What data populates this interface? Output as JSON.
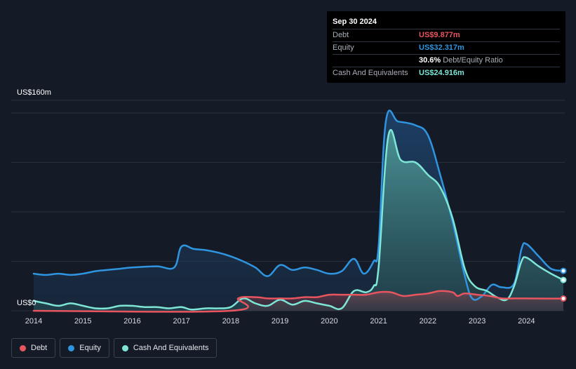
{
  "tooltip": {
    "date": "Sep 30 2024",
    "rows": [
      {
        "label": "Debt",
        "value": "US$9.877m",
        "color": "#e8555f"
      },
      {
        "label": "Equity",
        "value": "US$32.317m",
        "color": "#2f95e0"
      },
      {
        "label": "",
        "value": "30.6%",
        "sub": "Debt/Equity Ratio",
        "color": "#ffffff"
      },
      {
        "label": "Cash And Equivalents",
        "value": "US$24.916m",
        "color": "#7ee6d6"
      }
    ]
  },
  "legend": [
    {
      "label": "Debt",
      "color": "#e8555f"
    },
    {
      "label": "Equity",
      "color": "#2f95e0"
    },
    {
      "label": "Cash And Equivalents",
      "color": "#7ee6d6"
    }
  ],
  "chart_data": {
    "type": "area",
    "ylabel_top": "US$160m",
    "ylabel_bottom": "US$0",
    "ylim": [
      0,
      160
    ],
    "xlim": [
      2014,
      2024.75
    ],
    "xticks": [
      "2014",
      "2015",
      "2016",
      "2017",
      "2018",
      "2019",
      "2020",
      "2021",
      "2022",
      "2023",
      "2024"
    ],
    "grid": true,
    "legend_position": "bottom-left",
    "series": [
      {
        "name": "Equity",
        "color": "#2f95e0",
        "points": [
          [
            2014,
            30
          ],
          [
            2014.25,
            29
          ],
          [
            2014.5,
            30
          ],
          [
            2014.75,
            29
          ],
          [
            2015,
            30
          ],
          [
            2015.25,
            32
          ],
          [
            2015.5,
            33
          ],
          [
            2015.75,
            34
          ],
          [
            2016,
            35
          ],
          [
            2016.5,
            36
          ],
          [
            2016.85,
            35
          ],
          [
            2017,
            52
          ],
          [
            2017.25,
            50
          ],
          [
            2017.5,
            49
          ],
          [
            2017.75,
            47
          ],
          [
            2018,
            44
          ],
          [
            2018.25,
            40
          ],
          [
            2018.5,
            35
          ],
          [
            2018.75,
            28
          ],
          [
            2019,
            37
          ],
          [
            2019.25,
            33
          ],
          [
            2019.5,
            35
          ],
          [
            2019.75,
            33
          ],
          [
            2020,
            30
          ],
          [
            2020.25,
            32
          ],
          [
            2020.5,
            42
          ],
          [
            2020.7,
            30
          ],
          [
            2020.9,
            40
          ],
          [
            2021,
            52
          ],
          [
            2021.15,
            154
          ],
          [
            2021.4,
            153
          ],
          [
            2021.75,
            150
          ],
          [
            2022,
            142
          ],
          [
            2022.25,
            110
          ],
          [
            2022.5,
            72
          ],
          [
            2022.75,
            28
          ],
          [
            2022.9,
            10
          ],
          [
            2023.1,
            12
          ],
          [
            2023.3,
            21
          ],
          [
            2023.5,
            19
          ],
          [
            2023.75,
            22
          ],
          [
            2023.9,
            50
          ],
          [
            2024,
            54
          ],
          [
            2024.25,
            44
          ],
          [
            2024.5,
            34
          ],
          [
            2024.75,
            32.3
          ]
        ]
      },
      {
        "name": "Cash And Equivalents",
        "color": "#7ee6d6",
        "points": [
          [
            2014,
            8
          ],
          [
            2014.25,
            6
          ],
          [
            2014.5,
            4
          ],
          [
            2014.75,
            6
          ],
          [
            2015,
            4
          ],
          [
            2015.25,
            2
          ],
          [
            2015.5,
            2
          ],
          [
            2015.75,
            4
          ],
          [
            2016,
            4
          ],
          [
            2016.25,
            3
          ],
          [
            2016.5,
            3
          ],
          [
            2016.75,
            2
          ],
          [
            2017,
            3
          ],
          [
            2017.2,
            1
          ],
          [
            2017.5,
            2
          ],
          [
            2017.75,
            2
          ],
          [
            2018,
            3
          ],
          [
            2018.25,
            10
          ],
          [
            2018.5,
            6
          ],
          [
            2018.75,
            4
          ],
          [
            2019,
            9
          ],
          [
            2019.25,
            5
          ],
          [
            2019.5,
            8
          ],
          [
            2019.75,
            6
          ],
          [
            2020,
            4
          ],
          [
            2020.25,
            2
          ],
          [
            2020.5,
            16
          ],
          [
            2020.75,
            15
          ],
          [
            2020.9,
            20
          ],
          [
            2021,
            35
          ],
          [
            2021.2,
            142
          ],
          [
            2021.45,
            122
          ],
          [
            2021.75,
            120
          ],
          [
            2022,
            110
          ],
          [
            2022.25,
            100
          ],
          [
            2022.5,
            75
          ],
          [
            2022.75,
            34
          ],
          [
            2022.95,
            20
          ],
          [
            2023.2,
            16
          ],
          [
            2023.4,
            11
          ],
          [
            2023.6,
            9
          ],
          [
            2023.75,
            20
          ],
          [
            2023.9,
            40
          ],
          [
            2024,
            43
          ],
          [
            2024.25,
            36
          ],
          [
            2024.5,
            30
          ],
          [
            2024.75,
            24.9
          ]
        ]
      },
      {
        "name": "Debt",
        "color": "#e8555f",
        "points": [
          [
            2014,
            0
          ],
          [
            2018,
            0
          ],
          [
            2018.15,
            10
          ],
          [
            2018.5,
            11
          ],
          [
            2018.75,
            10
          ],
          [
            2019,
            10
          ],
          [
            2019.25,
            10
          ],
          [
            2019.5,
            11
          ],
          [
            2019.75,
            11
          ],
          [
            2020,
            13
          ],
          [
            2020.25,
            13
          ],
          [
            2020.5,
            13
          ],
          [
            2020.75,
            13
          ],
          [
            2021,
            15
          ],
          [
            2021.25,
            15
          ],
          [
            2021.5,
            12
          ],
          [
            2021.75,
            13
          ],
          [
            2022,
            14
          ],
          [
            2022.25,
            16
          ],
          [
            2022.5,
            15
          ],
          [
            2022.6,
            12
          ],
          [
            2022.75,
            14
          ],
          [
            2023,
            13
          ],
          [
            2023.25,
            12
          ],
          [
            2023.5,
            10
          ],
          [
            2023.75,
            10
          ],
          [
            2024,
            10
          ],
          [
            2024.5,
            9.9
          ],
          [
            2024.75,
            9.9
          ]
        ]
      }
    ]
  }
}
